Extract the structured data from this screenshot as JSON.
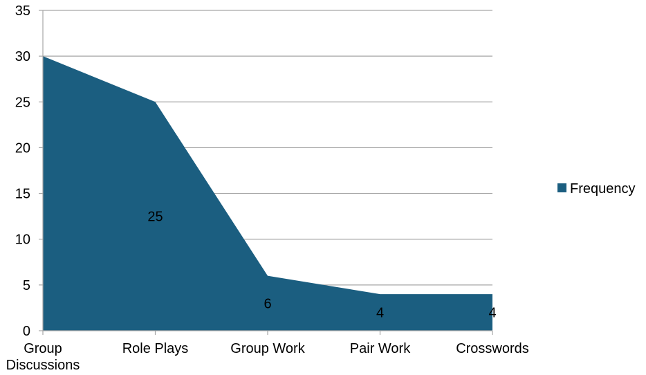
{
  "chart_data": {
    "type": "area",
    "categories": [
      "Group Discussions",
      "Role Plays",
      "Group Work",
      "Pair Work",
      "Crosswords"
    ],
    "category_label_lines": [
      [
        "Group",
        "Discussions"
      ],
      [
        "Role Plays"
      ],
      [
        "Group Work"
      ],
      [
        "Pair Work"
      ],
      [
        "Crosswords"
      ]
    ],
    "series": [
      {
        "name": "Frequency",
        "values": [
          30,
          25,
          6,
          4,
          4
        ],
        "color": "#1b5e80"
      }
    ],
    "data_labels": [
      {
        "category": "Role Plays",
        "text": "25"
      },
      {
        "category": "Group Work",
        "text": "6"
      },
      {
        "category": "Pair Work",
        "text": "4"
      },
      {
        "category": "Crosswords",
        "text": "4"
      }
    ],
    "ylim": [
      0,
      35
    ],
    "yticks": [
      0,
      5,
      10,
      15,
      20,
      25,
      30,
      35
    ],
    "grid": true,
    "legend": "right",
    "title": "",
    "xlabel": "",
    "ylabel": ""
  }
}
